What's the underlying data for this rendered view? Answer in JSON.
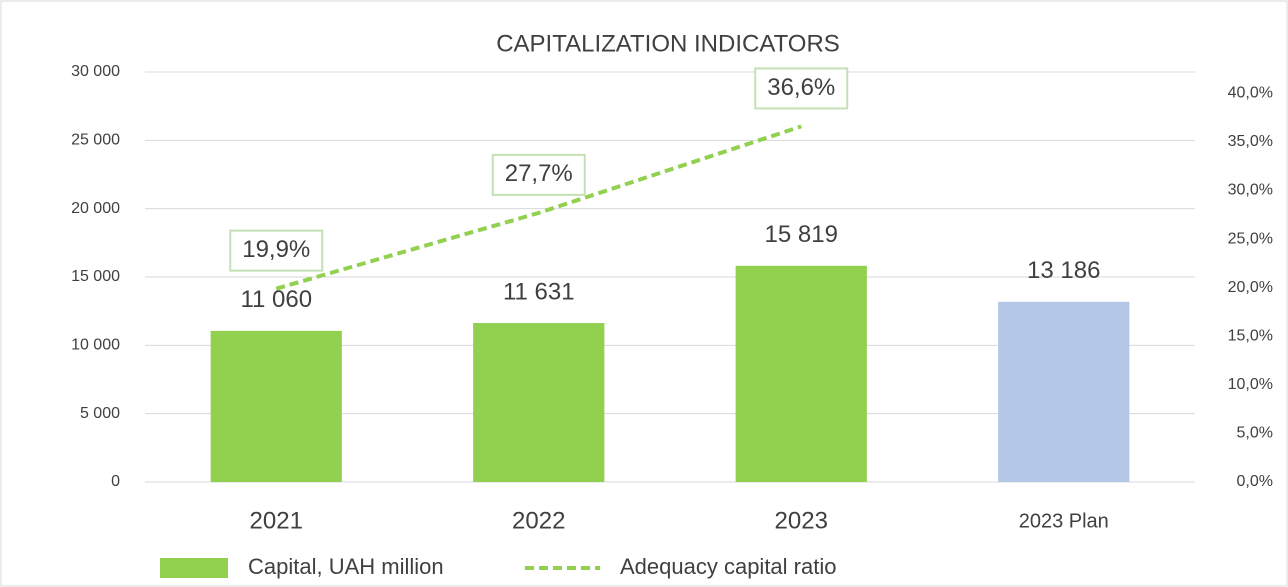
{
  "chart_data": {
    "type": "bar_line",
    "title": "CAPITALIZATION INDICATORS",
    "categories": [
      "2021",
      "2022",
      "2023",
      "2023 Plan"
    ],
    "series": [
      {
        "name": "Capital, UAH million",
        "type": "bar",
        "color": "#92d050",
        "colors": [
          "#92d050",
          "#92d050",
          "#92d050",
          "#b4c7e7"
        ],
        "values": [
          11060,
          11631,
          15819,
          13186
        ],
        "value_labels": [
          "11 060",
          "11 631",
          "15 819",
          "13 186"
        ]
      },
      {
        "name": "Adequacy capital ratio",
        "type": "line",
        "axis": "y2",
        "color": "#92d050",
        "dashed": true,
        "values": [
          19.9,
          27.7,
          36.6,
          null
        ],
        "value_labels": [
          "19,9%",
          "27,7%",
          "36,6%",
          null
        ]
      }
    ],
    "ylim": [
      0,
      30000
    ],
    "yticks": [
      0,
      {
        "value": 5000,
        "label": "5 000"
      },
      {
        "value": 10000,
        "label": "10 000"
      },
      {
        "value": 15000,
        "label": "15 000"
      },
      {
        "value": 20000,
        "label": "20 000"
      },
      {
        "value": 25000,
        "label": "25 000"
      },
      {
        "value": 30000,
        "label": "30 000"
      }
    ],
    "y2lim": [
      0,
      42.2
    ],
    "y2ticks": [
      {
        "value": 0,
        "label": "0,0%"
      },
      {
        "value": 5,
        "label": "5,0%"
      },
      {
        "value": 10,
        "label": "10,0%"
      },
      {
        "value": 15,
        "label": "15,0%"
      },
      {
        "value": 20,
        "label": "20,0%"
      },
      {
        "value": 25,
        "label": "25,0%"
      },
      {
        "value": 30,
        "label": "30,0%"
      },
      {
        "value": 35,
        "label": "35,0%"
      },
      {
        "value": 40,
        "label": "40,0%"
      }
    ],
    "grid": true,
    "legend": "bottom"
  }
}
